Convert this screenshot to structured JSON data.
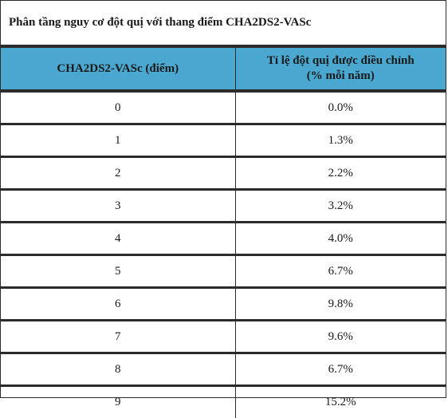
{
  "caption": "Phân tầng nguy cơ đột quị với thang điểm CHA2DS2-VASc",
  "columns": {
    "score": "CHA2DS2-VASc (điểm)",
    "rate_line1": "Tỉ lệ đột quị được điều chỉnh",
    "rate_line2": "(% mỗi năm)"
  },
  "rows": [
    {
      "score": "0",
      "rate": "0.0%"
    },
    {
      "score": "1",
      "rate": "1.3%"
    },
    {
      "score": "2",
      "rate": "2.2%"
    },
    {
      "score": "3",
      "rate": "3.2%"
    },
    {
      "score": "4",
      "rate": "4.0%"
    },
    {
      "score": "5",
      "rate": "6.7%"
    },
    {
      "score": "6",
      "rate": "9.8%"
    },
    {
      "score": "7",
      "rate": "9.6%"
    },
    {
      "score": "8",
      "rate": "6.7%"
    },
    {
      "score": "9",
      "rate": "15.2%"
    }
  ],
  "colors": {
    "header_bg": "#4aa7cf",
    "border": "#2b2b2b",
    "text": "#1a1a1a"
  }
}
